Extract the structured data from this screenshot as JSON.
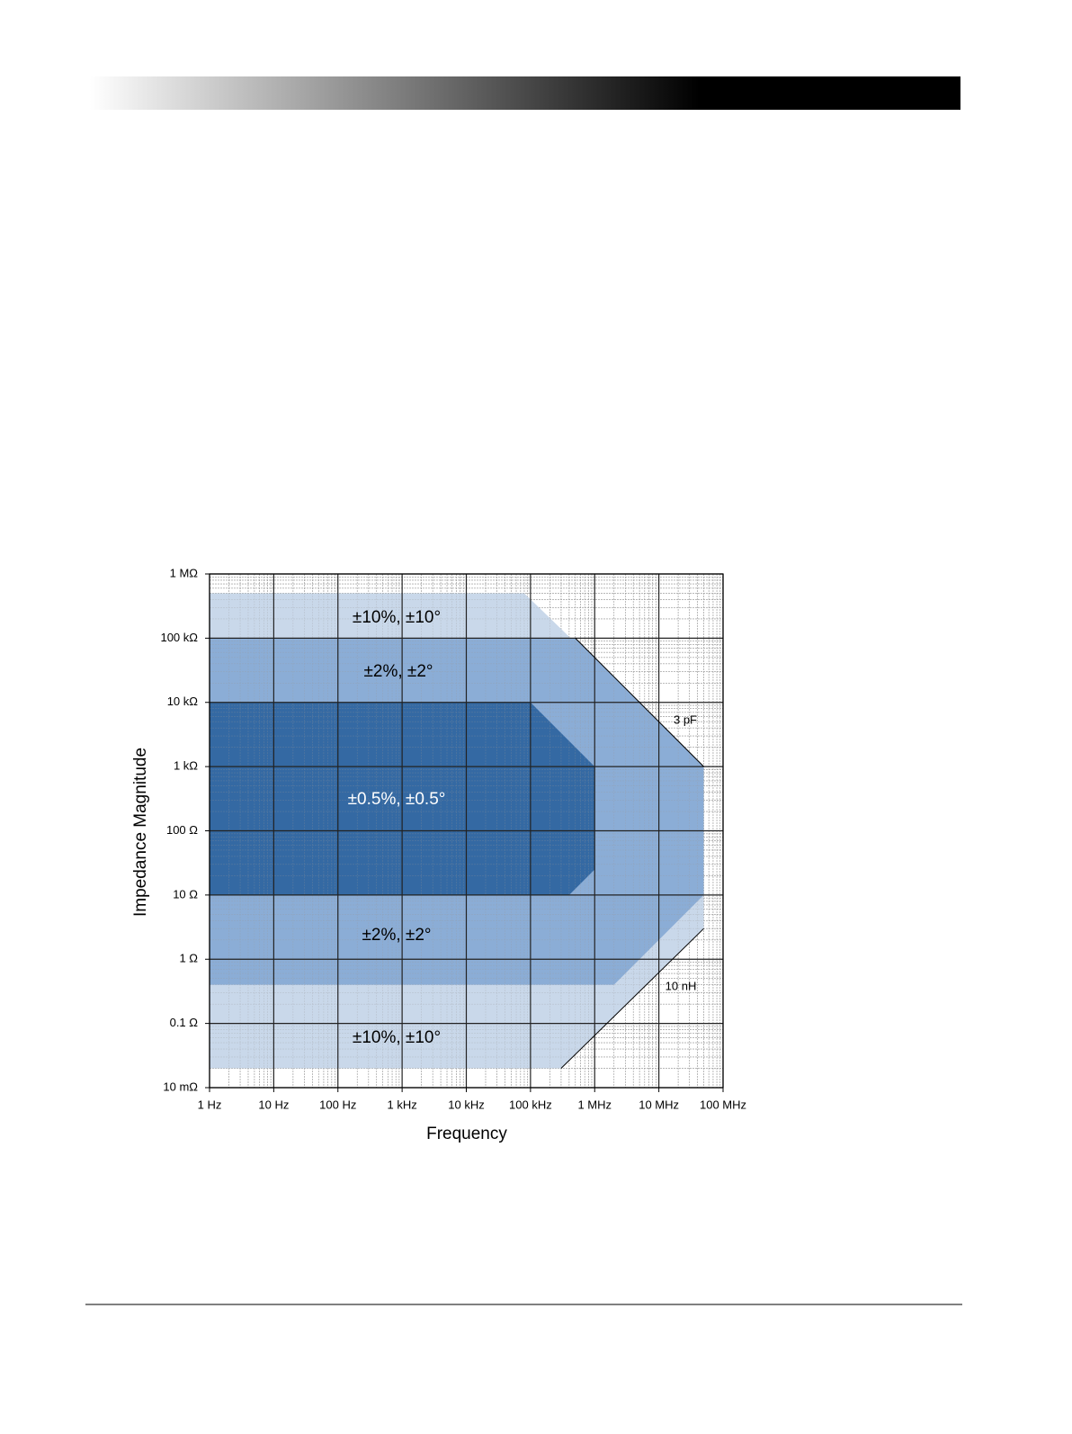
{
  "chart_data": {
    "type": "region",
    "xlabel": "Frequency",
    "ylabel": "Impedance Magnitude",
    "xscale": "log",
    "yscale": "log",
    "grid": true,
    "xlim": [
      1,
      100000000
    ],
    "ylim": [
      0.01,
      1000000
    ],
    "xticks": [
      {
        "value": 1,
        "label": "1 Hz"
      },
      {
        "value": 10,
        "label": "10 Hz"
      },
      {
        "value": 100,
        "label": "100 Hz"
      },
      {
        "value": 1000,
        "label": "1 kHz"
      },
      {
        "value": 10000,
        "label": "10 kHz"
      },
      {
        "value": 100000,
        "label": "100 kHz"
      },
      {
        "value": 1000000,
        "label": "1 MHz"
      },
      {
        "value": 10000000,
        "label": "10 MHz"
      },
      {
        "value": 100000000,
        "label": "100 MHz"
      }
    ],
    "yticks": [
      {
        "value": 0.01,
        "label": "10 mΩ"
      },
      {
        "value": 0.1,
        "label": "0.1 Ω"
      },
      {
        "value": 1,
        "label": "1 Ω"
      },
      {
        "value": 10,
        "label": "10 Ω"
      },
      {
        "value": 100,
        "label": "100 Ω"
      },
      {
        "value": 1000,
        "label": "1 kΩ"
      },
      {
        "value": 10000,
        "label": "10 kΩ"
      },
      {
        "value": 100000,
        "label": "100 kΩ"
      },
      {
        "value": 1000000,
        "label": "1 MΩ"
      }
    ],
    "regions": [
      {
        "color": "#c9d8ea",
        "x": [
          1,
          80000,
          50000000,
          50000000,
          300000,
          1
        ],
        "y": [
          500000,
          500000,
          1000,
          3,
          0.02,
          0.02
        ]
      },
      {
        "color": "#8badd6",
        "x": [
          1,
          500000,
          50000000,
          50000000,
          2000000,
          1
        ],
        "y": [
          100000,
          100000,
          1000,
          10,
          0.4,
          0.4
        ]
      },
      {
        "color": "#3469a3",
        "x": [
          1,
          100000,
          1000000,
          1000000,
          400000,
          1
        ],
        "y": [
          10000,
          10000,
          1000,
          25,
          10,
          10
        ]
      }
    ],
    "lines": [
      {
        "label": "3 pF",
        "x": [
          500000,
          50000000
        ],
        "y": [
          100000,
          1000
        ]
      },
      {
        "label": "10 nH",
        "x": [
          300000,
          50000000
        ],
        "y": [
          0.02,
          3
        ]
      }
    ],
    "annotations": [
      "±10%, ±10°",
      "±2%, ±2°",
      "±0.5%, ±0.5°",
      "±2%, ±2°",
      "±10%, ±10°"
    ]
  }
}
